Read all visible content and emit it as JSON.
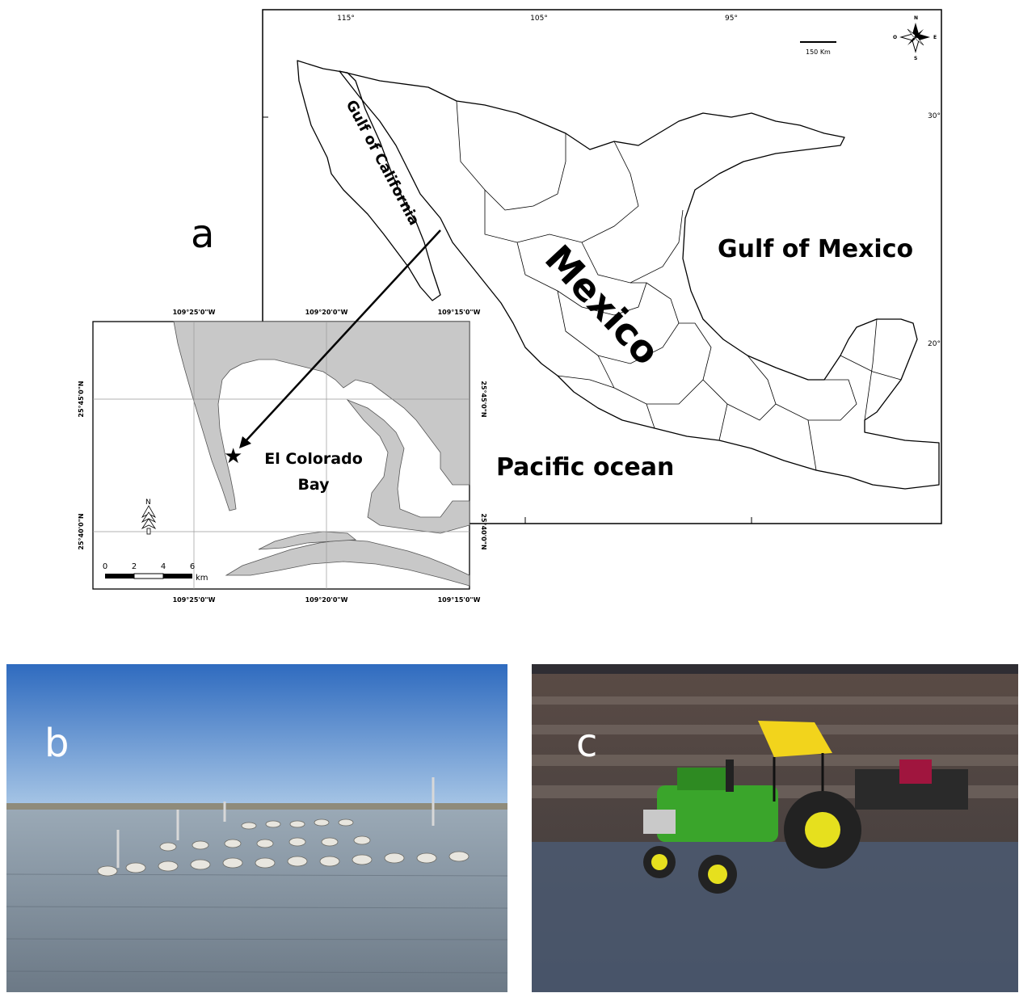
{
  "panels": {
    "a": {
      "letter": "a"
    },
    "b": {
      "letter": "b"
    },
    "c": {
      "letter": "c"
    }
  },
  "mexico_map": {
    "longitude_ticks": [
      "115°",
      "105°",
      "95°"
    ],
    "latitude_ticks": [
      "30°",
      "20°"
    ],
    "scale_label": "150 Km",
    "compass": {
      "n": "N",
      "s": "S",
      "e": "E",
      "w": "O"
    },
    "labels": {
      "gulf_of_california": "Gulf of California",
      "mexico": "Mexico",
      "gulf_of_mexico": "Gulf of Mexico",
      "pacific": "Pacific ocean"
    }
  },
  "bay_map": {
    "lon_ticks": [
      "109°25'0\"W",
      "109°20'0\"W",
      "109°15'0\"W"
    ],
    "lat_ticks": [
      "25°45'0\"N",
      "25°40'0\"N"
    ],
    "site_label_line1": "El Colorado",
    "site_label_line2": "Bay",
    "north_label": "N",
    "scale": {
      "ticks": [
        "0",
        "2",
        "4",
        "6"
      ],
      "unit": "km"
    }
  },
  "colors": {
    "land": "#c8c8c8",
    "sky": "#4d83c9",
    "water": "#7d8e9a",
    "tractor_green": "#3aa52b",
    "canopy_yellow": "#f2d41c"
  }
}
